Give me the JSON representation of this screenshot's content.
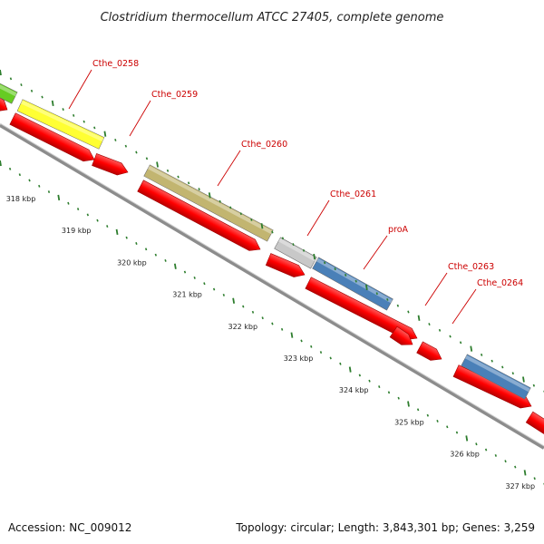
{
  "title": "Clostridium thermocellum ATCC 27405, complete genome",
  "footer": {
    "accession": "Accession: NC_009012",
    "topology": "Topology: circular; Length: 3,843,301 bp; Genes: 3,259"
  },
  "colors": {
    "forward_gene": "#ff0000",
    "backbone": "#8c8c8c",
    "tick": "#2d7d2d",
    "label": "#cc0000",
    "yellow_feature": "#ffff33",
    "olive_feature": "#c2b570",
    "gray_feature": "#c8c8c8",
    "blue_feature": "#4a80b8",
    "green_feature": "#66cc22"
  },
  "gene_labels": [
    {
      "name": "Cthe_0258"
    },
    {
      "name": "Cthe_0259"
    },
    {
      "name": "Cthe_0260"
    },
    {
      "name": "Cthe_0261"
    },
    {
      "name": "proA"
    },
    {
      "name": "Cthe_0263"
    },
    {
      "name": "Cthe_0264"
    }
  ],
  "kbp_labels": [
    "318 kbp",
    "319 kbp",
    "320 kbp",
    "321 kbp",
    "322 kbp",
    "323 kbp",
    "324 kbp",
    "325 kbp",
    "326 kbp",
    "327 kbp"
  ]
}
